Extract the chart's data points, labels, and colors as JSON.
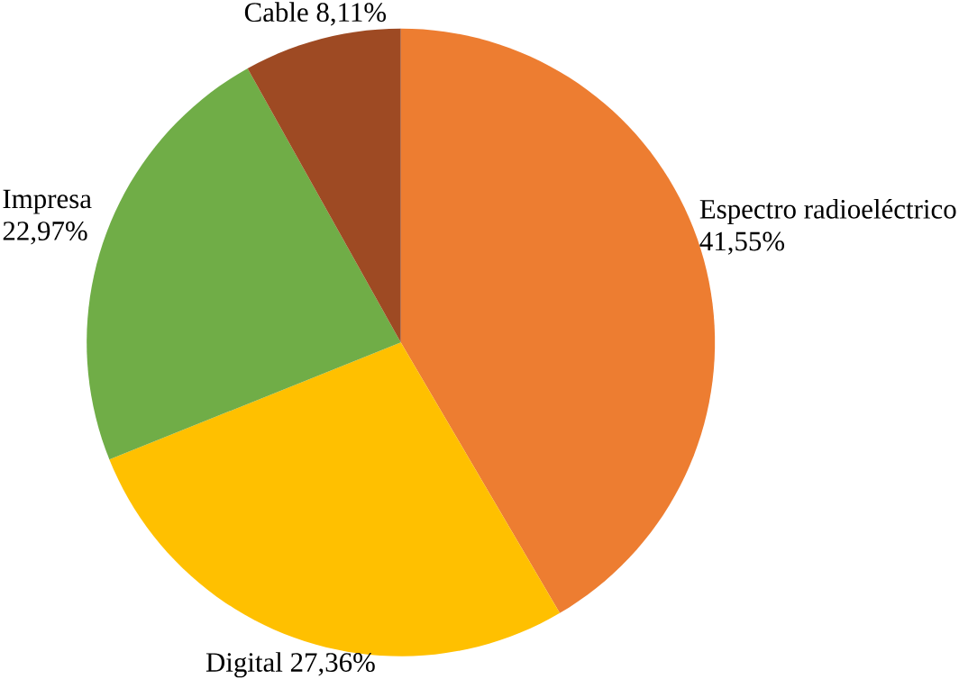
{
  "chart_data": {
    "type": "pie",
    "categories": [
      "Espectro radioeléctrico",
      "Digital",
      "Impresa",
      "Cable"
    ],
    "values": [
      41.55,
      27.36,
      22.97,
      8.11
    ],
    "colors": [
      "#ED7D31",
      "#FFC000",
      "#70AD47",
      "#9E4A23"
    ],
    "value_labels": [
      "41,55%",
      "27,36%",
      "22,97%",
      "8,11%"
    ]
  }
}
